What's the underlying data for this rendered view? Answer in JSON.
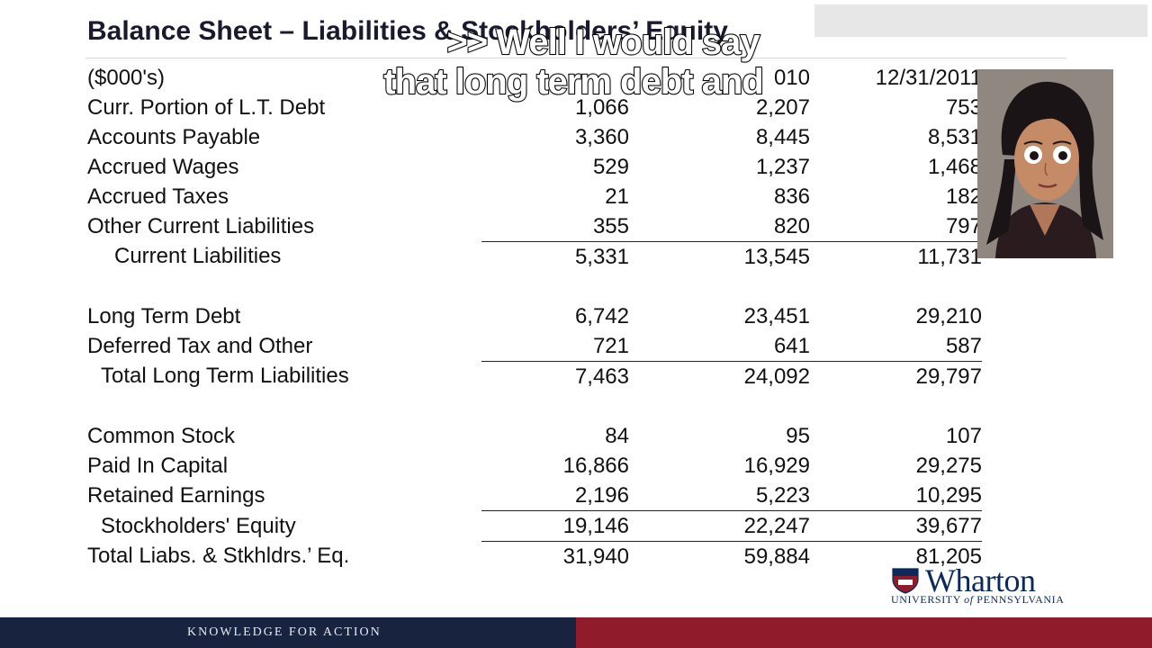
{
  "slide": {
    "title": "Balance Sheet – Liabilities & Stockholders’ Equity",
    "caption_line1": ">> Well I would say",
    "caption_line2": "that long term debt and"
  },
  "table": {
    "header": {
      "label": "($000's)",
      "col1": "",
      "col2": "010",
      "col3": "12/31/2011"
    },
    "rows": [
      {
        "label": "Curr. Portion of   L.T. Debt",
        "v1": "1,066",
        "v2": "2,207",
        "v3": "753"
      },
      {
        "label": "Accounts Payable",
        "v1": "3,360",
        "v2": "8,445",
        "v3": "8,531"
      },
      {
        "label": "Accrued Wages",
        "v1": "529",
        "v2": "1,237",
        "v3": "1,468"
      },
      {
        "label": "Accrued Taxes",
        "v1": "21",
        "v2": "836",
        "v3": "182"
      },
      {
        "label": "Other Current Liabilities",
        "v1": "355",
        "v2": "820",
        "v3": "797"
      },
      {
        "label": "Current Liabilities",
        "v1": "5,331",
        "v2": "13,545",
        "v3": "11,731"
      },
      {
        "label": "Long Term Debt",
        "v1": "6,742",
        "v2": "23,451",
        "v3": "29,210"
      },
      {
        "label": "Deferred Tax and Other",
        "v1": "721",
        "v2": "641",
        "v3": "587"
      },
      {
        "label": "Total Long Term Liabilities",
        "v1": "7,463",
        "v2": "24,092",
        "v3": "29,797"
      },
      {
        "label": "Common Stock",
        "v1": "84",
        "v2": "95",
        "v3": "107"
      },
      {
        "label": "Paid In Capital",
        "v1": "16,866",
        "v2": "16,929",
        "v3": "29,275"
      },
      {
        "label": "Retained Earnings",
        "v1": "2,196",
        "v2": "5,223",
        "v3": "10,295"
      },
      {
        "label": "Stockholders' Equity",
        "v1": "19,146",
        "v2": "22,247",
        "v3": "39,677"
      },
      {
        "label": "Total Liabs. & Stkhldrs.’ Eq.",
        "v1": "31,940",
        "v2": "59,884",
        "v3": "81,205"
      }
    ]
  },
  "logo": {
    "name": "Wharton",
    "sub_prefix": "UNIVERSITY ",
    "sub_of": "of",
    "sub_suffix": " PENNSYLVANIA"
  },
  "footer": {
    "text": "KNOWLEDGE FOR ACTION"
  },
  "colors": {
    "footer_navy": "#18233f",
    "footer_red": "#8f1b2b",
    "brand_blue": "#0b2a5c"
  }
}
